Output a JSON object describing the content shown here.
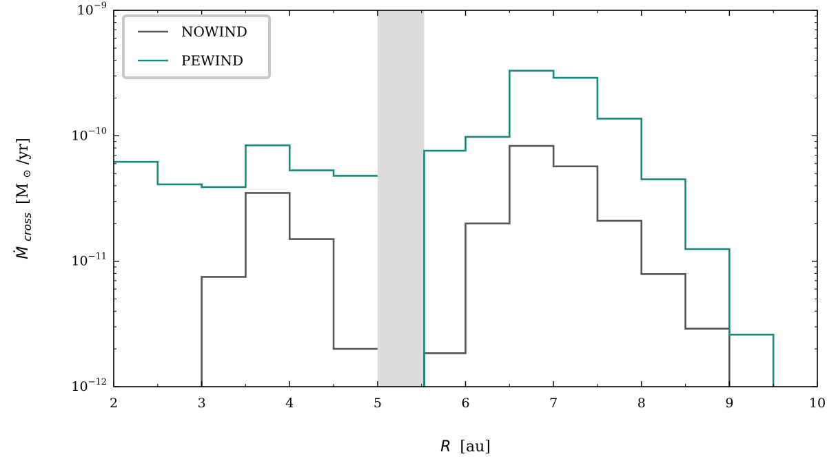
{
  "chart_data": {
    "type": "line",
    "step": true,
    "xlabel": {
      "main": "R",
      "unit": "[au]"
    },
    "ylabel": {
      "main": "Ṁ",
      "sub": "cross",
      "unit_open": "[M",
      "unit_sym": "⊙",
      "unit_close": "/yr]"
    },
    "xlim": [
      2,
      10
    ],
    "ylim": [
      1e-12,
      1e-09
    ],
    "yscale": "log",
    "x_ticks": [
      2,
      3,
      4,
      5,
      6,
      7,
      8,
      9,
      10
    ],
    "x_tick_labels": [
      "2",
      "3",
      "4",
      "5",
      "6",
      "7",
      "8",
      "9",
      "10"
    ],
    "y_ticks": [
      1e-12,
      1e-11,
      1e-10,
      1e-09
    ],
    "y_tick_labels": [
      {
        "base": "10",
        "exp": "−12"
      },
      {
        "base": "10",
        "exp": "−11"
      },
      {
        "base": "10",
        "exp": "−10"
      },
      {
        "base": "10",
        "exp": "−9"
      }
    ],
    "shaded_band": {
      "x": [
        5.0,
        5.53
      ],
      "color": "#dcdcdc"
    },
    "legend": {
      "position": "top-left"
    },
    "grid": false,
    "series": [
      {
        "name": "NOWIND",
        "color": "#555555",
        "segments": [
          {
            "edges": [
              3.0,
              3.5,
              4.0,
              4.5,
              5.0
            ],
            "values": [
              7.5e-12,
              3.5e-11,
              1.5e-11,
              2e-12
            ]
          },
          {
            "edges": [
              5.53,
              6.0,
              6.5,
              7.0,
              7.5,
              8.0,
              8.5,
              9.0
            ],
            "values": [
              1.85e-12,
              2e-11,
              8.3e-11,
              5.7e-11,
              2.1e-11,
              7.9e-12,
              2.9e-12
            ]
          }
        ]
      },
      {
        "name": "PEWIND",
        "color": "#138a7c",
        "segments": [
          {
            "edges": [
              2.0,
              2.5,
              3.0,
              3.5,
              4.0,
              4.5,
              5.0
            ],
            "values": [
              6.2e-11,
              4.1e-11,
              3.9e-11,
              8.4e-11,
              5.3e-11,
              4.8e-11
            ]
          },
          {
            "edges": [
              5.53,
              6.0,
              6.5,
              7.0,
              7.5,
              8.0,
              8.5,
              9.0,
              9.5
            ],
            "values": [
              7.6e-11,
              9.8e-11,
              3.3e-10,
              2.9e-10,
              1.37e-10,
              4.5e-11,
              1.25e-11,
              2.6e-12
            ]
          }
        ]
      }
    ]
  }
}
